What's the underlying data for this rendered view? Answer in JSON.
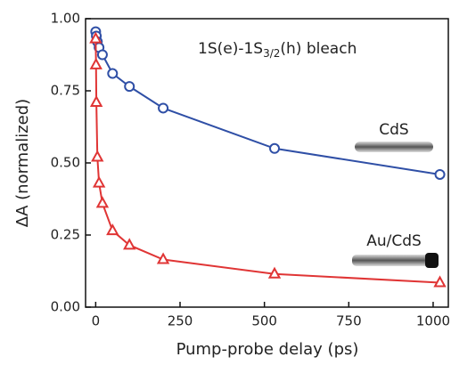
{
  "chart_data": {
    "type": "line",
    "xlabel": "Pump-probe delay (ps)",
    "ylabel": "ΔA (normalized)",
    "annotation": {
      "text": "1S(e)-1S",
      "sub": "3/2",
      "after": "(h) bleach"
    },
    "xlim": [
      -30,
      1045
    ],
    "ylim": [
      0,
      1
    ],
    "xticks": [
      0,
      250,
      500,
      750,
      1000
    ],
    "yticks": [
      {
        "value": 0,
        "label": "0.00"
      },
      {
        "value": 0.25,
        "label": "0.25"
      },
      {
        "value": 0.5,
        "label": "0.50"
      },
      {
        "value": 0.75,
        "label": "0.75"
      },
      {
        "value": 1,
        "label": "1.00"
      }
    ],
    "series": [
      {
        "name": "CdS",
        "color": "#2f4fa6",
        "marker": "circle",
        "x": [
          0,
          2,
          5,
          10,
          20,
          50,
          100,
          200,
          530,
          1020
        ],
        "values": [
          0.955,
          0.94,
          0.92,
          0.9,
          0.875,
          0.81,
          0.765,
          0.69,
          0.55,
          0.46
        ]
      },
      {
        "name": "Au/CdS",
        "color": "#e03535",
        "marker": "triangle",
        "x": [
          0,
          1,
          2,
          5,
          10,
          20,
          50,
          100,
          200,
          530,
          1020
        ],
        "values": [
          0.93,
          0.84,
          0.71,
          0.52,
          0.43,
          0.36,
          0.265,
          0.215,
          0.165,
          0.115,
          0.085
        ]
      }
    ]
  }
}
